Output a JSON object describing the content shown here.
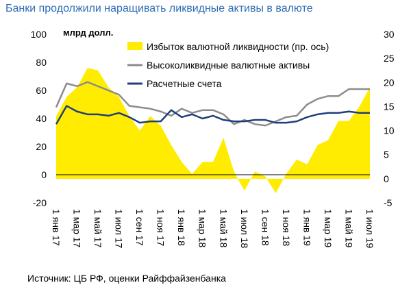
{
  "title": "Банки продолжили наращивать ликвидные активы в валюте",
  "source": "Источник: ЦБ РФ, оценки Райффайзенбанка",
  "chart_data": {
    "type": "line",
    "unit_label": "млрд долл.",
    "x": [
      "1 янв 17",
      "1 фев 17",
      "1 мар 17",
      "1 апр 17",
      "1 май 17",
      "1 июн 17",
      "1 июл 17",
      "1 авг 17",
      "1 сен 17",
      "1 окт 17",
      "1 ноя 17",
      "1 дек 17",
      "1 янв 18",
      "1 фев 18",
      "1 мар 18",
      "1 апр 18",
      "1 май 18",
      "1 июн 18",
      "1 июл 18",
      "1 авг 18",
      "1 сен 18",
      "1 окт 18",
      "1 ноя 18",
      "1 дек 18",
      "1 янв 19",
      "1 фев 19",
      "1 мар 19",
      "1 апр 19",
      "1 май 19",
      "1 июн 19",
      "1 июл 19"
    ],
    "x_tick_labels": [
      "1 янв 17",
      "1 мар 17",
      "1 май 17",
      "1 июл 17",
      "1 сен 17",
      "1 ноя 17",
      "1 янв 18",
      "1 мар 18",
      "1 май 18",
      "1 июл 18",
      "1 сен 18",
      "1 ноя 18",
      "1 янв 19",
      "1 мар 19",
      "1 май 19",
      "1 июл 19"
    ],
    "ylim": [
      -20,
      100
    ],
    "yticks": [
      -20,
      0,
      20,
      40,
      60,
      80,
      100
    ],
    "y2lim": [
      -5,
      30
    ],
    "y2ticks": [
      -5,
      0,
      5,
      10,
      15,
      20,
      25,
      30
    ],
    "series": [
      {
        "name": "Избыток валютной ликвидности (пр. ось)",
        "axis": "right",
        "style": "area",
        "color": "#ffec00",
        "values": [
          13,
          17,
          19,
          23,
          22.5,
          19,
          17,
          13,
          10,
          13,
          11,
          7,
          3.5,
          1,
          3.5,
          3.5,
          8.5,
          1.5,
          -2.5,
          1.5,
          0.5,
          -3,
          1,
          4,
          3,
          7,
          8,
          12,
          12,
          15,
          19
        ]
      },
      {
        "name": "Высоколиквидные валютные активы",
        "axis": "left",
        "style": "line",
        "color": "#8c8c8c",
        "values": [
          48,
          65,
          63,
          66,
          63,
          60,
          57,
          49,
          48,
          47,
          45,
          42,
          47,
          44,
          46,
          46,
          43,
          36,
          39,
          36,
          35,
          38,
          41,
          42,
          50,
          54,
          56,
          56,
          61,
          61,
          61
        ]
      },
      {
        "name": "Расчетные счета",
        "axis": "left",
        "style": "line",
        "color": "#1f3f7a",
        "values": [
          36,
          49,
          45,
          43,
          43,
          42,
          44,
          41,
          37,
          38,
          38,
          46,
          41,
          43,
          40,
          42,
          39,
          38,
          38,
          39,
          39,
          37,
          37,
          38,
          41,
          43,
          44,
          44,
          45,
          44,
          44
        ]
      }
    ],
    "legend_placement": "top-center",
    "grid": false
  }
}
